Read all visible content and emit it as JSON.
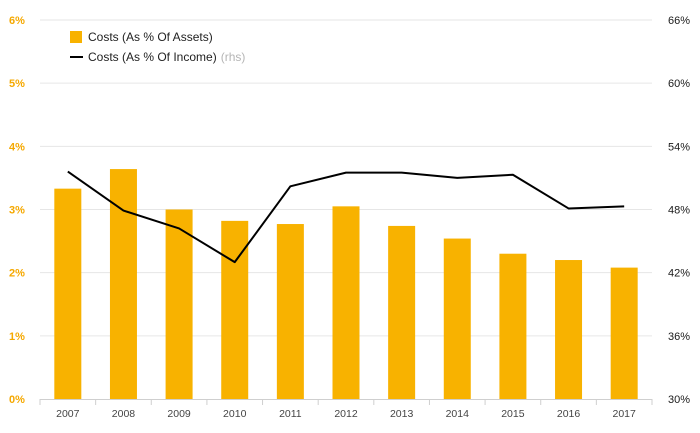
{
  "chart_data": {
    "type": "bar",
    "categories": [
      "2007",
      "2008",
      "2009",
      "2010",
      "2011",
      "2012",
      "2013",
      "2014",
      "2015",
      "2016",
      "2017"
    ],
    "series": [
      {
        "name": "Costs (As % Of Assets)",
        "kind": "bar",
        "axis": "left",
        "values": [
          3.33,
          3.64,
          3.0,
          2.82,
          2.77,
          3.05,
          2.74,
          2.54,
          2.3,
          2.2,
          2.08
        ]
      },
      {
        "name": "Costs (As % Of Income)",
        "kind": "line",
        "axis": "right",
        "values": [
          51.6,
          47.9,
          46.2,
          43.0,
          50.2,
          51.5,
          51.5,
          51.0,
          51.3,
          48.1,
          48.3
        ]
      }
    ],
    "y_left": {
      "range": [
        0,
        6
      ],
      "ticks": [
        "0%",
        "1%",
        "2%",
        "3%",
        "4%",
        "5%",
        "6%"
      ]
    },
    "y_right": {
      "range": [
        30,
        66
      ],
      "ticks": [
        "30%",
        "36%",
        "42%",
        "48%",
        "54%",
        "60%",
        "66%"
      ]
    },
    "grid": true,
    "legend_position": "top-left",
    "legend_suffix": "(rhs)",
    "colors": {
      "bar": "#f8b200",
      "line": "#000000",
      "left_tick": "#f5a800",
      "grid": "#e6e6e6"
    }
  }
}
